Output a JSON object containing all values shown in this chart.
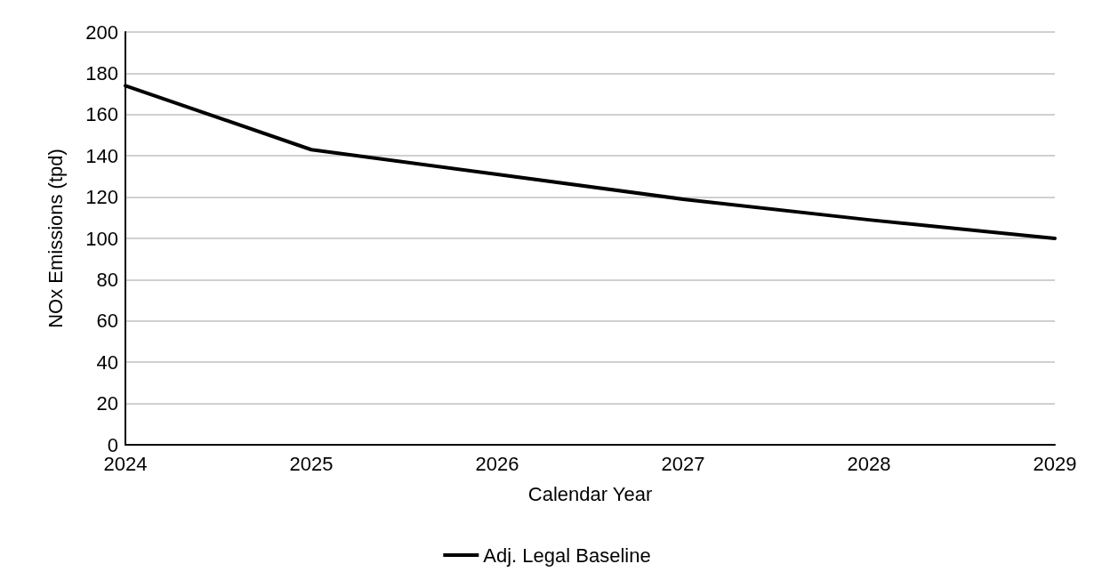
{
  "chart_data": {
    "type": "line",
    "xlabel": "Calendar Year",
    "ylabel": "NOx Emissions (tpd)",
    "categories": [
      "2024",
      "2025",
      "2026",
      "2027",
      "2028",
      "2029"
    ],
    "series": [
      {
        "name": "Adj. Legal Baseline",
        "color": "#000000",
        "values": [
          174,
          143,
          131,
          119,
          109,
          100
        ]
      }
    ],
    "ylim": [
      0,
      200
    ],
    "yticks": [
      0,
      20,
      40,
      60,
      80,
      100,
      120,
      140,
      160,
      180,
      200
    ],
    "grid": "y",
    "legend": "bottom",
    "marker": "none",
    "line_style": "solid"
  }
}
